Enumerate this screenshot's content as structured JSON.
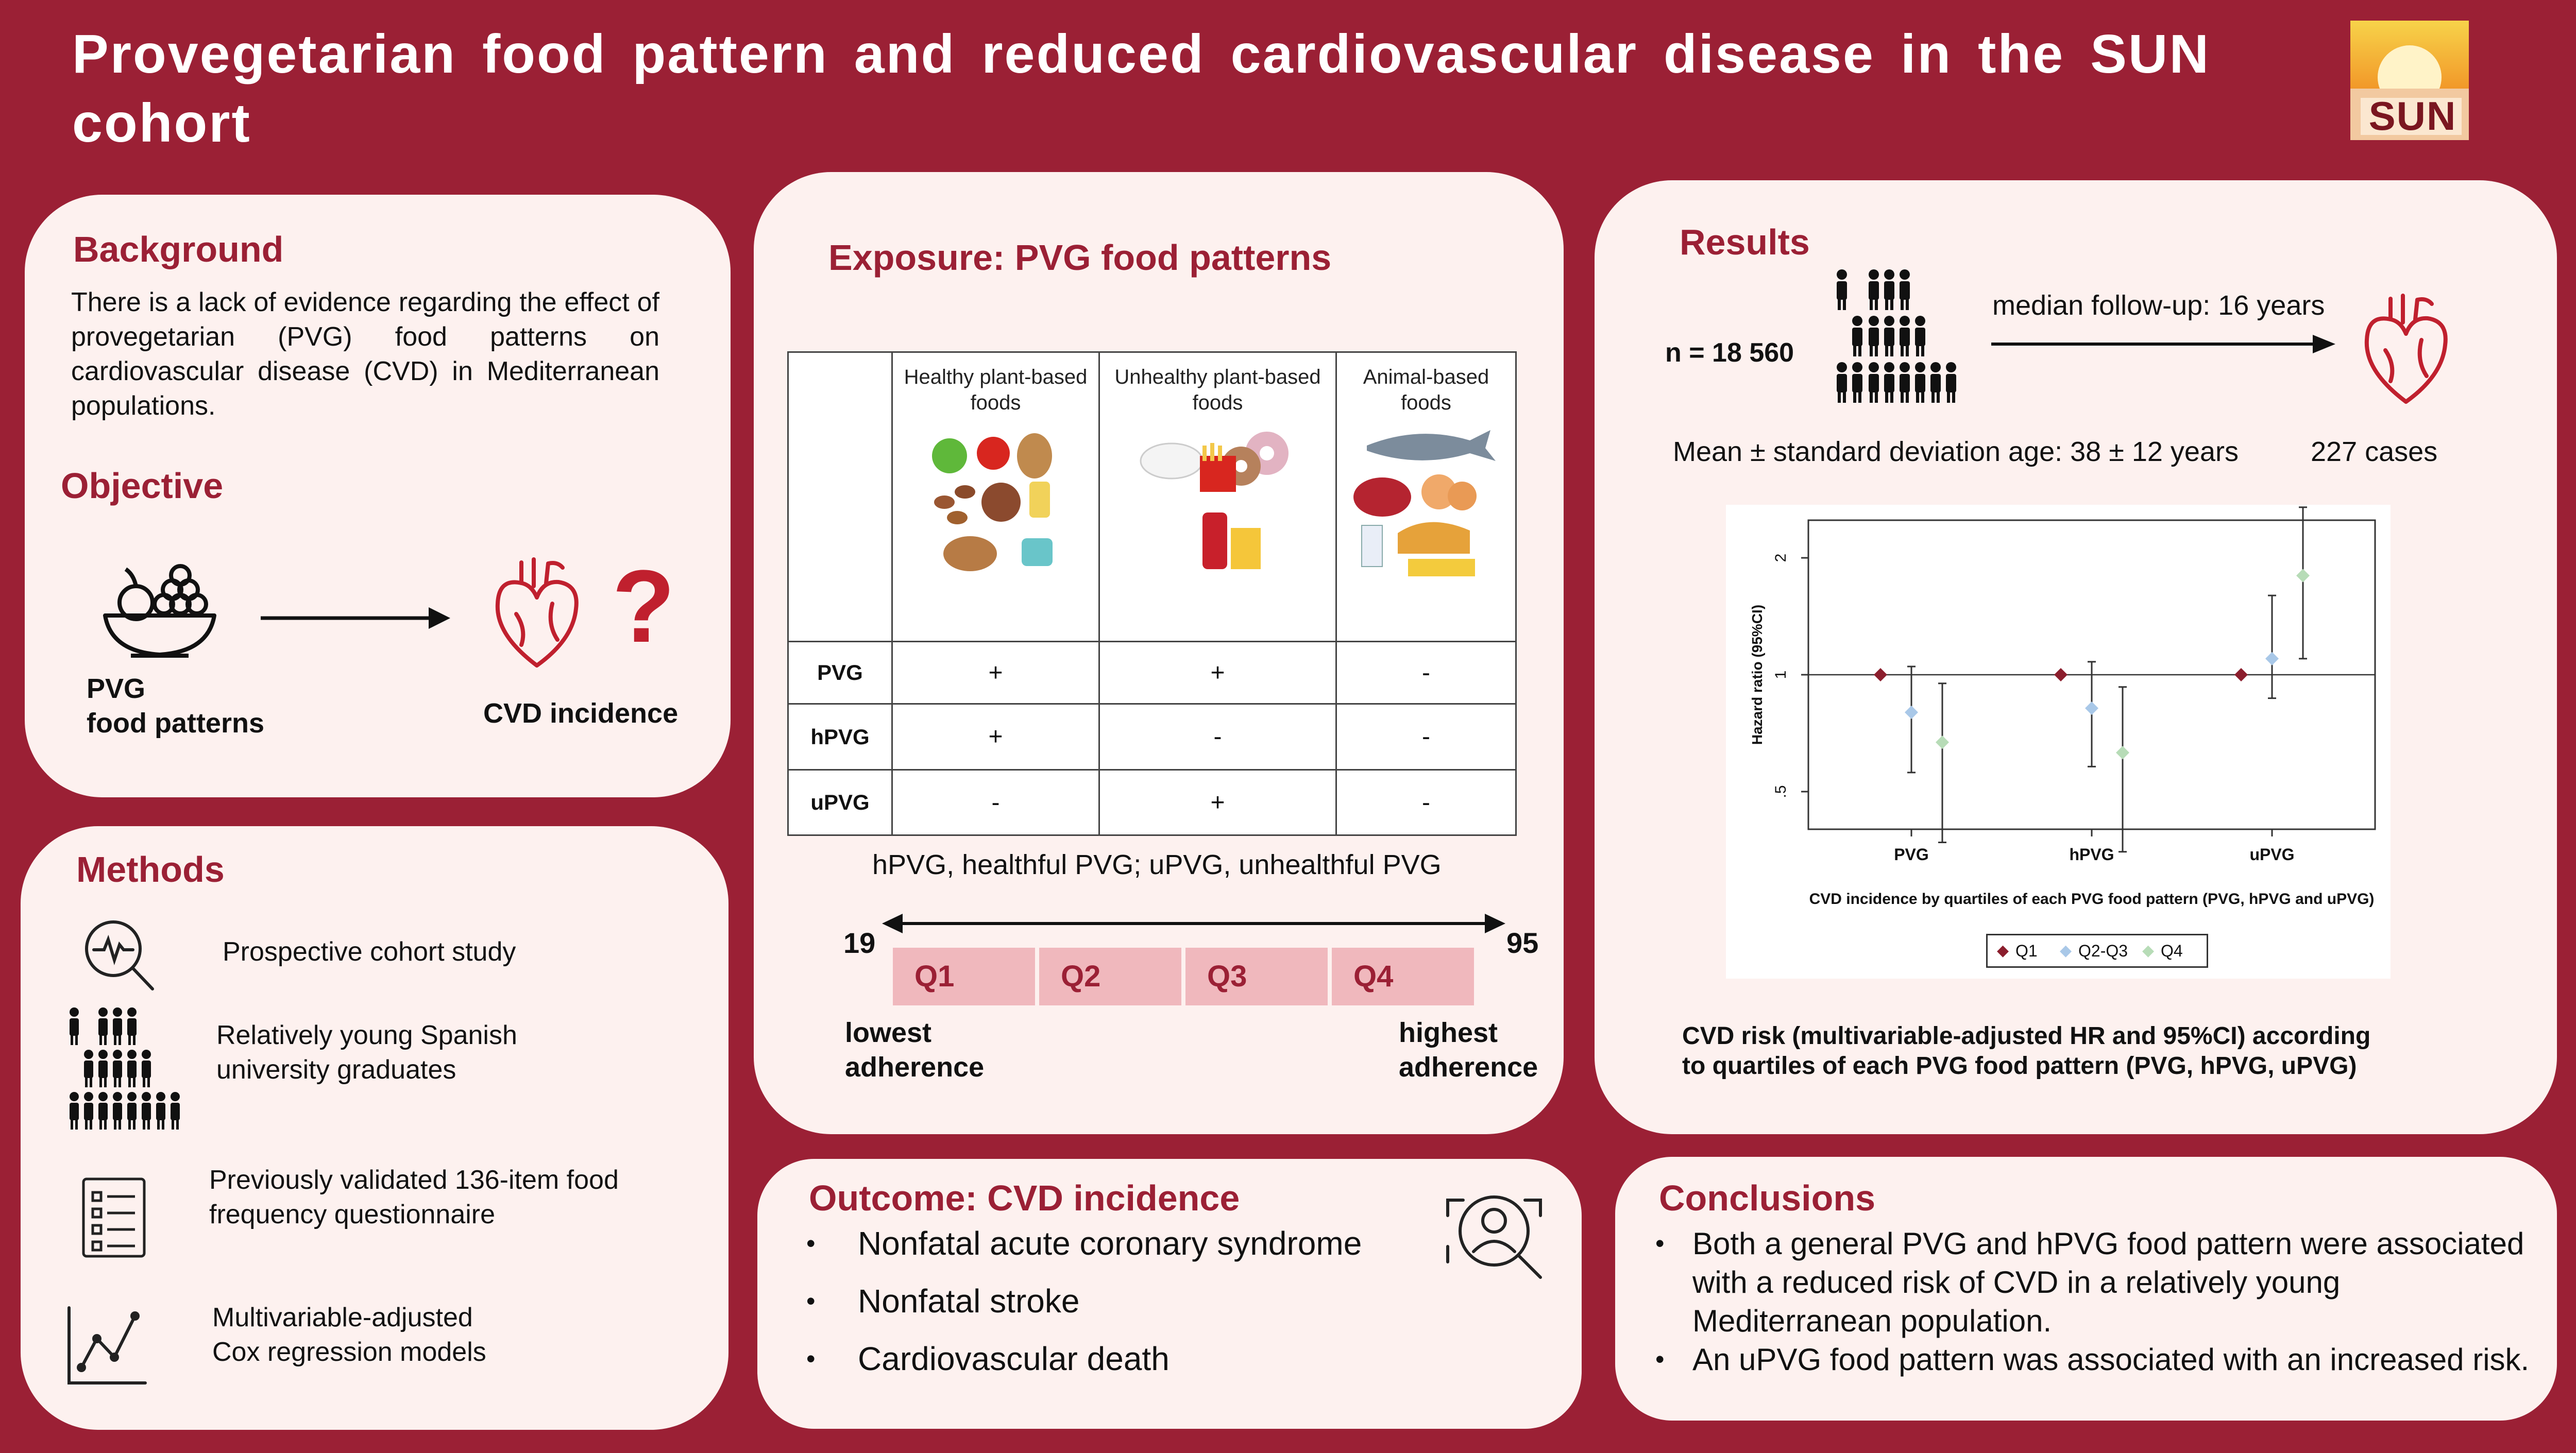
{
  "title": "Provegetarian food pattern and reduced cardiovascular disease in the SUN cohort",
  "logo_text": "SUN",
  "background": {
    "heading": "Background",
    "text": "There is a lack of evidence regarding the effect of provegetarian (PVG) food patterns on cardiovascular disease (CVD) in Mediterranean populations."
  },
  "objective": {
    "heading": "Objective",
    "left_label_1": "PVG",
    "left_label_2": "food patterns",
    "right_label": "CVD incidence",
    "question_mark": "?"
  },
  "methods": {
    "heading": "Methods",
    "items": [
      {
        "icon": "monitor-magnifier-icon",
        "text_1": "Prospective cohort study",
        "text_2": ""
      },
      {
        "icon": "people-pyramid-icon",
        "text_1": "Relatively young Spanish",
        "text_2": "university graduates"
      },
      {
        "icon": "questionnaire-icon",
        "text_1": "Previously validated 136-item food",
        "text_2": "frequency questionnaire"
      },
      {
        "icon": "line-graph-icon",
        "text_1": "Multivariable-adjusted",
        "text_2": "Cox regression models"
      }
    ]
  },
  "exposure": {
    "heading": "Exposure: PVG food patterns",
    "columns": [
      {
        "line1": "Healthy plant-based",
        "line2": "foods"
      },
      {
        "line1": "Unhealthy plant-based",
        "line2": "foods"
      },
      {
        "line1": "Animal-based",
        "line2": "foods"
      }
    ],
    "rows": [
      {
        "label": "PVG",
        "signs": [
          "+",
          "+",
          "-"
        ]
      },
      {
        "label": "hPVG",
        "signs": [
          "+",
          "-",
          "-"
        ]
      },
      {
        "label": "uPVG",
        "signs": [
          "-",
          "+",
          "-"
        ]
      }
    ],
    "footnote": "hPVG,  healthful PVG; uPVG,  unhealthful PVG",
    "scale_min": "19",
    "scale_max": "95",
    "quartiles": [
      "Q1",
      "Q2",
      "Q3",
      "Q4"
    ],
    "low_label_1": "lowest",
    "low_label_2": "adherence",
    "high_label_1": "highest",
    "high_label_2": "adherence"
  },
  "outcome": {
    "heading": "Outcome: CVD incidence",
    "items": [
      "Nonfatal acute coronary syndrome",
      "Nonfatal stroke",
      "Cardiovascular death"
    ]
  },
  "results": {
    "heading": "Results",
    "n_label": "n = 18 560",
    "follow_up": "median follow-up: 16 years",
    "age": "Mean ± standard deviation age: 38 ± 12 years",
    "cases": "227 cases",
    "caption_1": "CVD risk (multivariable-adjusted HR and 95%CI) according",
    "caption_2": "to quartiles of each PVG food pattern (PVG, hPVG, uPVG)"
  },
  "conclusions": {
    "heading": "Conclusions",
    "items": [
      "Both a general PVG and hPVG food pattern were associated with a reduced risk of CVD in a relatively young Mediterranean population.",
      "An uPVG food pattern was associated with an increased risk."
    ]
  },
  "colors": {
    "brand": "#9b2035",
    "panel": "#fdf1ef",
    "quartile": "#f0b8bd",
    "q1": "#8b1e2d",
    "q23": "#a9c8e8",
    "q4": "#b7dcb7"
  },
  "chart_data": {
    "type": "scatter",
    "title": "",
    "xlabel": "CVD incidence by quartiles of each PVG food pattern (PVG, hPVG and uPVG)",
    "ylabel": "Hazard ratio (95%CI)",
    "categories": [
      "PVG",
      "hPVG",
      "uPVG"
    ],
    "ylim": [
      0.4,
      2.5
    ],
    "y_scale": "log",
    "yticks": [
      0.5,
      1,
      2
    ],
    "ytick_labels": [
      ".5",
      "1",
      "2"
    ],
    "reference_line": 1,
    "legend": [
      "Q1",
      "Q2-Q3",
      "Q4"
    ],
    "legend_position": "bottom",
    "series": [
      {
        "name": "Q1",
        "values": [
          1.0,
          1.0,
          1.0
        ],
        "lower": [
          1.0,
          1.0,
          1.0
        ],
        "upper": [
          1.0,
          1.0,
          1.0
        ]
      },
      {
        "name": "Q2-Q3",
        "values": [
          0.8,
          0.82,
          1.1
        ],
        "lower": [
          0.56,
          0.58,
          0.87
        ],
        "upper": [
          1.05,
          1.08,
          1.6
        ]
      },
      {
        "name": "Q4",
        "values": [
          0.67,
          0.63,
          1.8
        ],
        "lower": [
          0.37,
          0.35,
          1.1
        ],
        "upper": [
          0.95,
          0.93,
          2.7
        ]
      }
    ]
  }
}
